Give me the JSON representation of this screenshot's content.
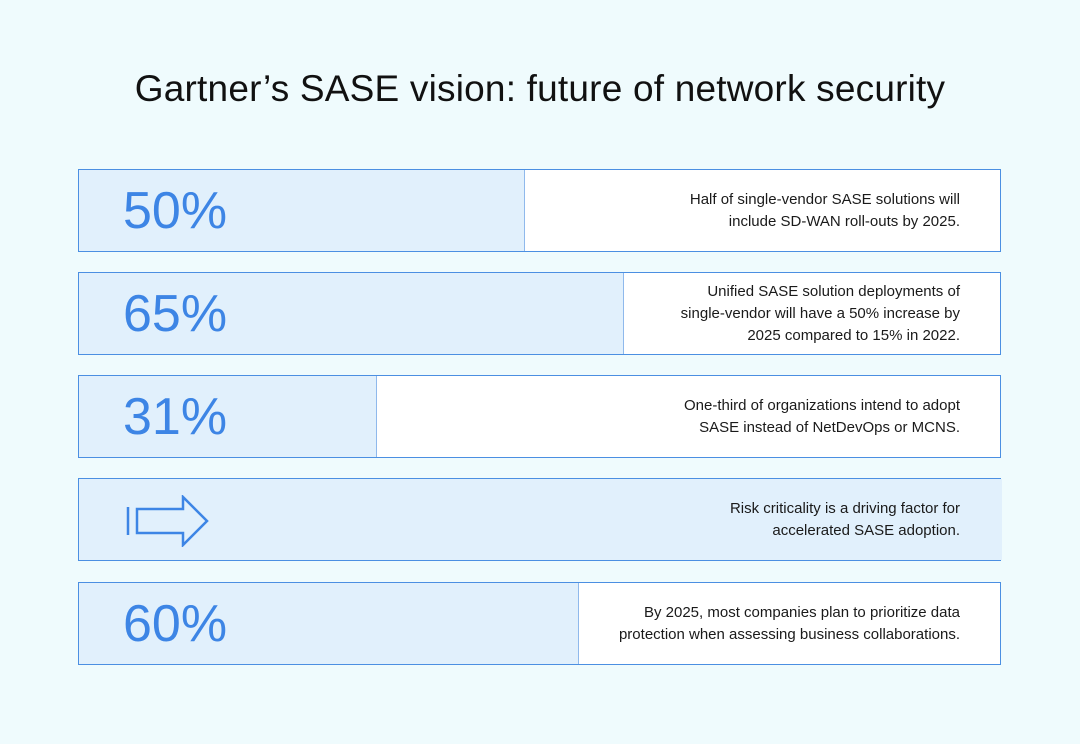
{
  "header": {
    "title": "Gartner’s SASE vision: future of network security"
  },
  "rows": [
    {
      "stat": "50%",
      "text": [
        "Half of single-vendor SASE solutions will",
        "include SD-WAN roll-outs by 2025."
      ]
    },
    {
      "stat": "65%",
      "text": [
        "Unified SASE solution deployments of",
        "single-vendor will have a 50% increase by",
        "2025 compared to 15% in 2022."
      ]
    },
    {
      "stat": "31%",
      "text": [
        "One-third of organizations intend to adopt",
        "SASE instead of NetDevOps or MCNS."
      ]
    },
    {
      "text": [
        "Risk criticality is a driving factor for",
        "accelerated SASE adoption."
      ]
    },
    {
      "stat": "60%",
      "text": [
        "By 2025, most companies plan to prioritize data",
        "protection when assessing business collaborations."
      ]
    }
  ]
}
